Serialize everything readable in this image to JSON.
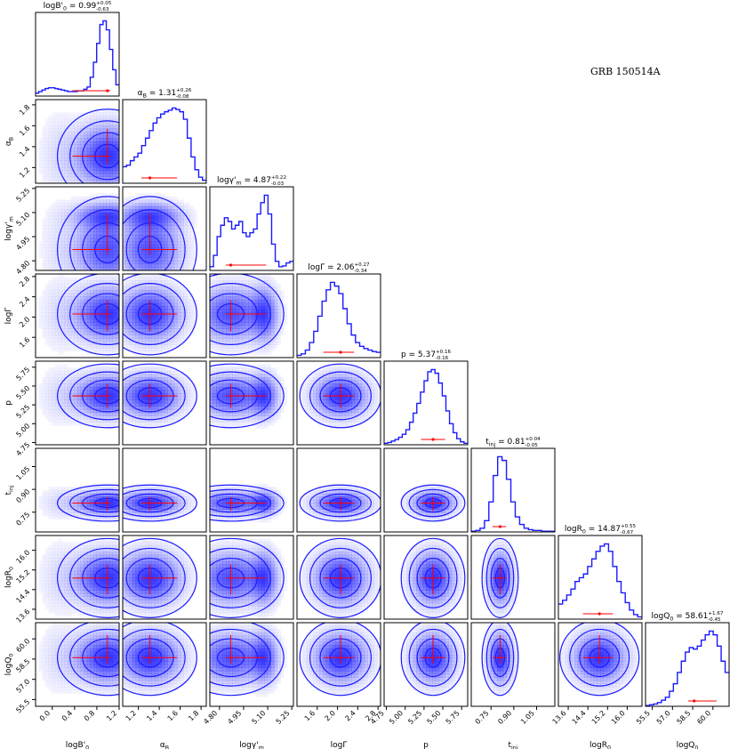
{
  "figure_title": "GRB 150514A",
  "chart_data": {
    "type": "corner",
    "colors": {
      "contour": "#1a1aff",
      "fill": "#2a2aff",
      "marker": "#ff0000",
      "frame": "#000000"
    },
    "params": [
      {
        "key": "logB0",
        "axis_label": "logB'_0",
        "summary": "logB'_0 = 0.99^{+0.05}_{-0.63}",
        "median": 0.99,
        "err_lo": 0.63,
        "err_hi": 0.05,
        "range": [
          -0.3,
          1.2
        ],
        "ticks": [
          0.0,
          0.4,
          0.8,
          1.2
        ],
        "tick_labels": [
          "0.0",
          "0.4",
          "0.8",
          "1.2"
        ]
      },
      {
        "key": "alphaB",
        "axis_label": "α_B",
        "summary": "α_B = 1.31^{+0.26}_{-0.08}",
        "median": 1.31,
        "err_lo": 0.08,
        "err_hi": 0.26,
        "range": [
          1.05,
          1.85
        ],
        "ticks": [
          1.2,
          1.4,
          1.6,
          1.8
        ],
        "tick_labels": [
          "1.2",
          "1.4",
          "1.6",
          "1.8"
        ]
      },
      {
        "key": "logGm",
        "axis_label": "logγ'_m",
        "summary": "logγ'_m = 4.87^{+0.22}_{-0.03}",
        "median": 4.87,
        "err_lo": 0.03,
        "err_hi": 0.22,
        "range": [
          4.74,
          5.26
        ],
        "ticks": [
          4.8,
          4.95,
          5.1,
          5.25
        ],
        "tick_labels": [
          "4.80",
          "4.95",
          "5.10",
          "5.25"
        ]
      },
      {
        "key": "logGamma",
        "axis_label": "logΓ",
        "summary": "logΓ = 2.06^{+0.27}_{-0.34}",
        "median": 2.06,
        "err_lo": 0.34,
        "err_hi": 0.27,
        "range": [
          1.2,
          2.85
        ],
        "ticks": [
          1.6,
          2.0,
          2.4,
          2.8
        ],
        "tick_labels": [
          "1.6",
          "2.0",
          "2.4",
          "2.8"
        ]
      },
      {
        "key": "p",
        "axis_label": "p",
        "summary": "p = 5.37^{+0.16}_{-0.16}",
        "median": 5.37,
        "err_lo": 0.16,
        "err_hi": 0.16,
        "range": [
          4.72,
          5.83
        ],
        "ticks": [
          4.75,
          5.0,
          5.25,
          5.5,
          5.75
        ],
        "tick_labels": [
          "4.75",
          "5.00",
          "5.25",
          "5.50",
          "5.75"
        ]
      },
      {
        "key": "tinj",
        "axis_label": "t_inj",
        "summary": "t_inj = 0.81^{+0.04}_{-0.05}",
        "median": 0.81,
        "err_lo": 0.05,
        "err_hi": 0.04,
        "range": [
          0.62,
          1.17
        ],
        "ticks": [
          0.75,
          0.9,
          1.05
        ],
        "tick_labels": [
          "0.75",
          "0.90",
          "1.05"
        ]
      },
      {
        "key": "logR0",
        "axis_label": "logR_0",
        "summary": "logR_0 = 14.87^{+0.55}_{-0.67}",
        "median": 14.87,
        "err_lo": 0.67,
        "err_hi": 0.55,
        "range": [
          13.2,
          16.6
        ],
        "ticks": [
          13.6,
          14.4,
          15.2,
          16.0
        ],
        "tick_labels": [
          "13.6",
          "14.4",
          "15.2",
          "16.0"
        ]
      },
      {
        "key": "logQ0",
        "axis_label": "logQ_0",
        "summary": "logQ_0 = 58.61^{+1.67}_{-0.45}",
        "median": 58.61,
        "err_lo": 0.45,
        "err_hi": 1.67,
        "range": [
          55.0,
          61.2
        ],
        "ticks": [
          55.5,
          57.0,
          58.5,
          60.0
        ],
        "tick_labels": [
          "55.5",
          "57.0",
          "58.5",
          "60.0"
        ]
      }
    ],
    "histograms": [
      [
        0.04,
        0.06,
        0.08,
        0.1,
        0.11,
        0.11,
        0.1,
        0.09,
        0.08,
        0.07,
        0.06,
        0.06,
        0.06,
        0.07,
        0.07,
        0.09,
        0.12,
        0.25,
        0.45,
        0.7,
        0.95,
        1.0,
        0.88,
        0.62,
        0.35,
        0.15
      ],
      [
        0.22,
        0.24,
        0.3,
        0.35,
        0.4,
        0.5,
        0.6,
        0.7,
        0.8,
        0.87,
        0.92,
        0.95,
        0.97,
        1.0,
        0.98,
        0.95,
        0.85,
        0.6,
        0.35,
        0.18,
        0.08,
        0.04
      ],
      [
        0.05,
        0.2,
        0.45,
        0.6,
        0.7,
        0.65,
        0.55,
        0.6,
        0.65,
        0.5,
        0.45,
        0.5,
        0.55,
        0.75,
        0.9,
        1.0,
        0.75,
        0.35,
        0.12,
        0.05,
        0.06,
        0.1,
        0.12
      ],
      [
        0.03,
        0.05,
        0.1,
        0.2,
        0.35,
        0.55,
        0.75,
        0.9,
        1.0,
        0.95,
        0.85,
        0.65,
        0.45,
        0.3,
        0.2,
        0.15,
        0.12,
        0.1,
        0.08,
        0.07
      ],
      [
        0.02,
        0.03,
        0.05,
        0.07,
        0.1,
        0.14,
        0.2,
        0.3,
        0.42,
        0.55,
        0.7,
        0.85,
        0.97,
        1.0,
        0.95,
        0.82,
        0.65,
        0.45,
        0.28,
        0.16,
        0.08,
        0.04,
        0.02
      ],
      [
        0.01,
        0.02,
        0.05,
        0.15,
        0.4,
        0.75,
        1.0,
        0.95,
        0.7,
        0.4,
        0.2,
        0.1,
        0.05,
        0.03,
        0.02,
        0.02,
        0.01,
        0.01,
        0.01
      ],
      [
        0.2,
        0.25,
        0.32,
        0.4,
        0.5,
        0.55,
        0.6,
        0.7,
        0.8,
        0.9,
        0.97,
        1.0,
        0.9,
        0.7,
        0.5,
        0.35,
        0.22,
        0.12,
        0.06,
        0.03
      ],
      [
        0.01,
        0.02,
        0.03,
        0.05,
        0.08,
        0.12,
        0.2,
        0.3,
        0.45,
        0.6,
        0.72,
        0.78,
        0.76,
        0.8,
        0.88,
        0.95,
        1.0,
        0.95,
        0.8,
        0.6,
        0.45
      ]
    ]
  }
}
